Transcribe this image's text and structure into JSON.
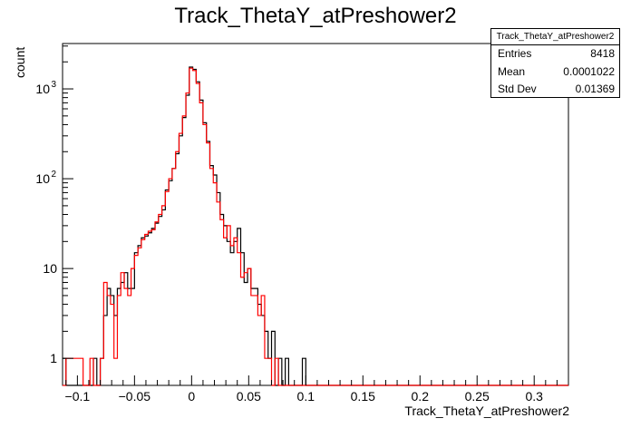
{
  "chart_data": {
    "type": "histogram",
    "title": "Track_ThetaY_atPreshower2",
    "xlabel": "Track_ThetaY_atPreshower2",
    "ylabel": "count",
    "xlim": [
      -0.113,
      0.33
    ],
    "ylim": [
      0.5,
      3200
    ],
    "y_scale": "log",
    "grid": false,
    "x_ticks": [
      -0.1,
      -0.05,
      0,
      0.05,
      0.1,
      0.15,
      0.2,
      0.25,
      0.3
    ],
    "x_tick_labels": [
      "−0.1",
      "−0.05",
      "0",
      "0.05",
      "0.1",
      "0.15",
      "0.2",
      "0.25",
      "0.3"
    ],
    "y_ticks": [
      1,
      10,
      100,
      1000
    ],
    "y_tick_labels": [
      "1",
      "10",
      "10^2",
      "10^3"
    ],
    "bin_width": 0.003,
    "series": [
      {
        "color": "#000000",
        "bins": [
          [
            -0.113,
            1
          ],
          [
            -0.11,
            0
          ],
          [
            -0.107,
            0
          ],
          [
            -0.104,
            0
          ],
          [
            -0.101,
            0
          ],
          [
            -0.098,
            0
          ],
          [
            -0.095,
            0
          ],
          [
            -0.092,
            0
          ],
          [
            -0.089,
            0
          ],
          [
            -0.086,
            1
          ],
          [
            -0.083,
            0
          ],
          [
            -0.08,
            1
          ],
          [
            -0.077,
            3
          ],
          [
            -0.074,
            6
          ],
          [
            -0.071,
            5
          ],
          [
            -0.068,
            3
          ],
          [
            -0.065,
            6
          ],
          [
            -0.062,
            7
          ],
          [
            -0.059,
            9
          ],
          [
            -0.056,
            6
          ],
          [
            -0.053,
            6
          ],
          [
            -0.05,
            15
          ],
          [
            -0.047,
            18
          ],
          [
            -0.044,
            22
          ],
          [
            -0.041,
            23
          ],
          [
            -0.038,
            25
          ],
          [
            -0.035,
            28
          ],
          [
            -0.032,
            32
          ],
          [
            -0.029,
            38
          ],
          [
            -0.026,
            45
          ],
          [
            -0.023,
            75
          ],
          [
            -0.02,
            95
          ],
          [
            -0.017,
            130
          ],
          [
            -0.014,
            190
          ],
          [
            -0.011,
            300
          ],
          [
            -0.008,
            480
          ],
          [
            -0.005,
            850
          ],
          [
            -0.002,
            1750
          ],
          [
            0.001,
            1650
          ],
          [
            0.004,
            1200
          ],
          [
            0.007,
            750
          ],
          [
            0.01,
            420
          ],
          [
            0.013,
            260
          ],
          [
            0.016,
            140
          ],
          [
            0.019,
            110
          ],
          [
            0.022,
            70
          ],
          [
            0.025,
            40
          ],
          [
            0.028,
            30
          ],
          [
            0.031,
            20
          ],
          [
            0.034,
            15
          ],
          [
            0.037,
            20
          ],
          [
            0.04,
            28
          ],
          [
            0.043,
            15
          ],
          [
            0.046,
            7
          ],
          [
            0.049,
            10
          ],
          [
            0.052,
            6
          ],
          [
            0.055,
            6
          ],
          [
            0.058,
            4
          ],
          [
            0.061,
            3
          ],
          [
            0.064,
            2
          ],
          [
            0.067,
            1
          ],
          [
            0.07,
            2
          ],
          [
            0.073,
            0
          ],
          [
            0.076,
            1
          ],
          [
            0.079,
            0
          ],
          [
            0.082,
            1
          ],
          [
            0.085,
            0
          ],
          [
            0.088,
            0
          ],
          [
            0.091,
            0
          ],
          [
            0.094,
            0
          ],
          [
            0.097,
            1
          ],
          [
            0.1,
            0
          ]
        ]
      },
      {
        "color": "#ff0000",
        "bins": [
          [
            -0.113,
            0
          ],
          [
            -0.11,
            1
          ],
          [
            -0.107,
            1
          ],
          [
            -0.104,
            1
          ],
          [
            -0.101,
            1
          ],
          [
            -0.098,
            1
          ],
          [
            -0.095,
            0
          ],
          [
            -0.092,
            0
          ],
          [
            -0.089,
            1
          ],
          [
            -0.086,
            0
          ],
          [
            -0.083,
            0
          ],
          [
            -0.08,
            1
          ],
          [
            -0.077,
            7
          ],
          [
            -0.074,
            5
          ],
          [
            -0.071,
            4
          ],
          [
            -0.068,
            1
          ],
          [
            -0.065,
            5
          ],
          [
            -0.062,
            9
          ],
          [
            -0.059,
            6
          ],
          [
            -0.056,
            5
          ],
          [
            -0.053,
            10
          ],
          [
            -0.05,
            14
          ],
          [
            -0.047,
            17
          ],
          [
            -0.044,
            21
          ],
          [
            -0.041,
            24
          ],
          [
            -0.038,
            26
          ],
          [
            -0.035,
            27
          ],
          [
            -0.032,
            33
          ],
          [
            -0.029,
            40
          ],
          [
            -0.026,
            50
          ],
          [
            -0.023,
            72
          ],
          [
            -0.02,
            100
          ],
          [
            -0.017,
            130
          ],
          [
            -0.014,
            200
          ],
          [
            -0.011,
            320
          ],
          [
            -0.008,
            500
          ],
          [
            -0.005,
            900
          ],
          [
            -0.002,
            1700
          ],
          [
            0.001,
            1600
          ],
          [
            0.004,
            1150
          ],
          [
            0.007,
            700
          ],
          [
            0.01,
            400
          ],
          [
            0.013,
            250
          ],
          [
            0.016,
            130
          ],
          [
            0.019,
            90
          ],
          [
            0.022,
            55
          ],
          [
            0.025,
            35
          ],
          [
            0.028,
            22
          ],
          [
            0.031,
            30
          ],
          [
            0.034,
            18
          ],
          [
            0.037,
            22
          ],
          [
            0.04,
            15
          ],
          [
            0.043,
            8
          ],
          [
            0.046,
            9
          ],
          [
            0.049,
            10
          ],
          [
            0.052,
            5
          ],
          [
            0.055,
            5
          ],
          [
            0.058,
            3
          ],
          [
            0.061,
            5
          ],
          [
            0.064,
            1
          ],
          [
            0.067,
            1
          ],
          [
            0.07,
            0
          ],
          [
            0.073,
            1
          ],
          [
            0.076,
            0
          ],
          [
            0.079,
            0
          ],
          [
            0.082,
            0
          ],
          [
            0.085,
            0
          ],
          [
            0.088,
            0
          ],
          [
            0.091,
            0
          ],
          [
            0.094,
            0
          ],
          [
            0.097,
            0
          ],
          [
            0.1,
            0
          ]
        ]
      }
    ]
  },
  "stats": {
    "title": "Track_ThetaY_atPreshower2",
    "entries_label": "Entries",
    "entries_value": "8418",
    "mean_label": "Mean",
    "mean_value": "0.0001022",
    "std_label": "Std Dev",
    "std_value": "0.01369"
  }
}
